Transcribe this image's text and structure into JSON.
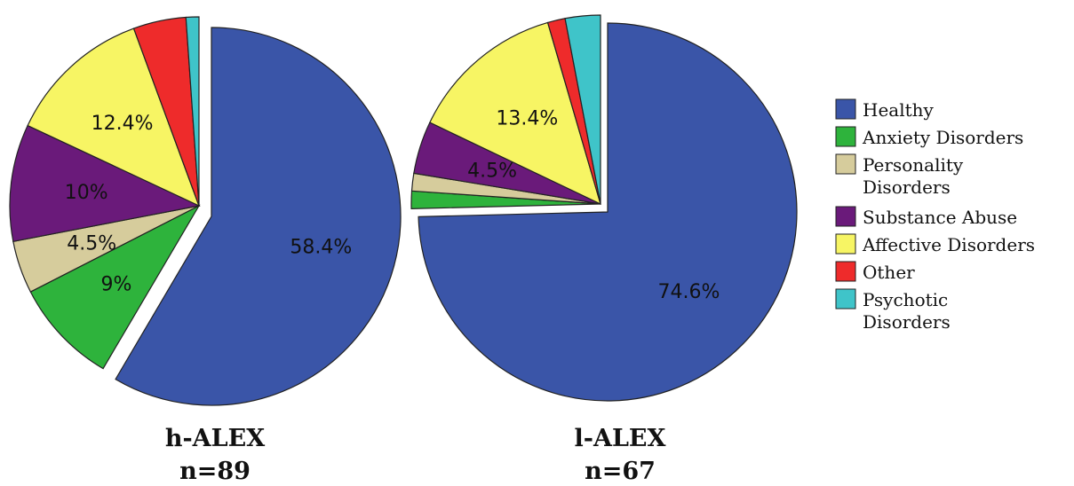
{
  "legend": [
    {
      "key": "healthy",
      "lines": [
        "Healthy"
      ],
      "color": "#3a55a8"
    },
    {
      "key": "anxiety",
      "lines": [
        "Anxiety Disorders"
      ],
      "color": "#2eb33c"
    },
    {
      "key": "personality",
      "lines": [
        "Personality",
        "Disorders"
      ],
      "color": "#d6cc9c"
    },
    {
      "key": "substance",
      "lines": [
        "Substance Abuse"
      ],
      "color": "#6a1a7a"
    },
    {
      "key": "affective",
      "lines": [
        "Affective Disorders"
      ],
      "color": "#f7f564"
    },
    {
      "key": "other",
      "lines": [
        "Other"
      ],
      "color": "#ee2b2b"
    },
    {
      "key": "psychotic",
      "lines": [
        "Psychotic",
        "Disorders"
      ],
      "color": "#3fc4c9"
    }
  ],
  "chart_data": [
    {
      "type": "pie",
      "title": "h-ALEX",
      "subtitle": "n=89",
      "exploded": "Healthy",
      "slices": [
        {
          "name": "Healthy",
          "value": 58.4,
          "label": "58.4%"
        },
        {
          "name": "Anxiety Disorders",
          "value": 9.0,
          "label": "9%"
        },
        {
          "name": "Personality Disorders",
          "value": 4.5,
          "label": "4.5%"
        },
        {
          "name": "Substance Abuse",
          "value": 10.0,
          "label": "10%"
        },
        {
          "name": "Affective Disorders",
          "value": 12.4,
          "label": "12.4%"
        },
        {
          "name": "Other",
          "value": 4.5,
          "label": ""
        },
        {
          "name": "Psychotic Disorders",
          "value": 1.1,
          "label": ""
        }
      ]
    },
    {
      "type": "pie",
      "title": "l-ALEX",
      "subtitle": "n=67",
      "exploded": "Healthy",
      "slices": [
        {
          "name": "Healthy",
          "value": 74.6,
          "label": "74.6%"
        },
        {
          "name": "Anxiety Disorders",
          "value": 1.5,
          "label": ""
        },
        {
          "name": "Personality Disorders",
          "value": 1.5,
          "label": ""
        },
        {
          "name": "Substance Abuse",
          "value": 4.5,
          "label": "4.5%"
        },
        {
          "name": "Affective Disorders",
          "value": 13.4,
          "label": "13.4%"
        },
        {
          "name": "Other",
          "value": 1.5,
          "label": ""
        },
        {
          "name": "Psychotic Disorders",
          "value": 3.0,
          "label": ""
        }
      ]
    }
  ]
}
